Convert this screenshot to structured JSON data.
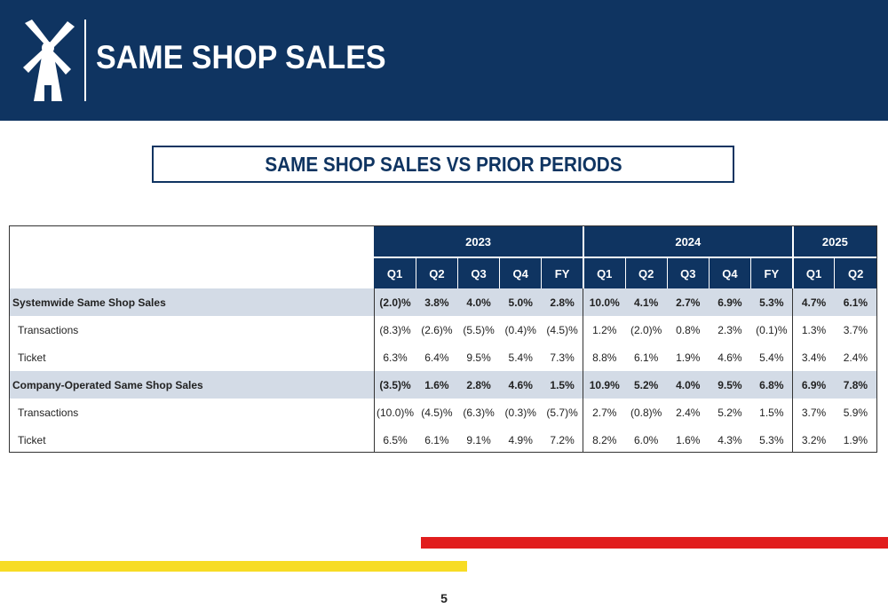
{
  "header": {
    "title": "SAME SHOP SALES",
    "background": "#0f3461",
    "logo_icon": "windmill-icon"
  },
  "subtitle": "SAME SHOP SALES VS PRIOR PERIODS",
  "table": {
    "years": [
      "2023",
      "2024",
      "2025"
    ],
    "quarters": [
      "Q1",
      "Q2",
      "Q3",
      "Q4",
      "FY",
      "Q1",
      "Q2",
      "Q3",
      "Q4",
      "FY",
      "Q1",
      "Q2"
    ],
    "rows": [
      {
        "label": "Systemwide Same Shop Sales",
        "bold": true,
        "values": [
          "(2.0)%",
          "3.8%",
          "4.0%",
          "5.0%",
          "2.8%",
          "10.0%",
          "4.1%",
          "2.7%",
          "6.9%",
          "5.3%",
          "4.7%",
          "6.1%"
        ]
      },
      {
        "label": "Transactions",
        "bold": false,
        "values": [
          "(8.3)%",
          "(2.6)%",
          "(5.5)%",
          "(0.4)%",
          "(4.5)%",
          "1.2%",
          "(2.0)%",
          "0.8%",
          "2.3%",
          "(0.1)%",
          "1.3%",
          "3.7%"
        ]
      },
      {
        "label": "Ticket",
        "bold": false,
        "values": [
          "6.3%",
          "6.4%",
          "9.5%",
          "5.4%",
          "7.3%",
          "8.8%",
          "6.1%",
          "1.9%",
          "4.6%",
          "5.4%",
          "3.4%",
          "2.4%"
        ]
      },
      {
        "label": "Company-Operated Same Shop Sales",
        "bold": true,
        "values": [
          "(3.5)%",
          "1.6%",
          "2.8%",
          "4.6%",
          "1.5%",
          "10.9%",
          "5.2%",
          "4.0%",
          "9.5%",
          "6.8%",
          "6.9%",
          "7.8%"
        ]
      },
      {
        "label": "Transactions",
        "bold": false,
        "values": [
          "(10.0)%",
          "(4.5)%",
          "(6.3)%",
          "(0.3)%",
          "(5.7)%",
          "2.7%",
          "(0.8)%",
          "2.4%",
          "5.2%",
          "1.5%",
          "3.7%",
          "5.9%"
        ]
      },
      {
        "label": "Ticket",
        "bold": false,
        "values": [
          "6.5%",
          "6.1%",
          "9.1%",
          "4.9%",
          "7.2%",
          "8.2%",
          "6.0%",
          "1.6%",
          "4.3%",
          "5.3%",
          "3.2%",
          "1.9%"
        ]
      }
    ]
  },
  "colors": {
    "navy": "#0f3461",
    "highlight_row": "#d3dbe6",
    "accent_red": "#e11d1d",
    "accent_yellow": "#f7dc25"
  },
  "page_number": "5"
}
